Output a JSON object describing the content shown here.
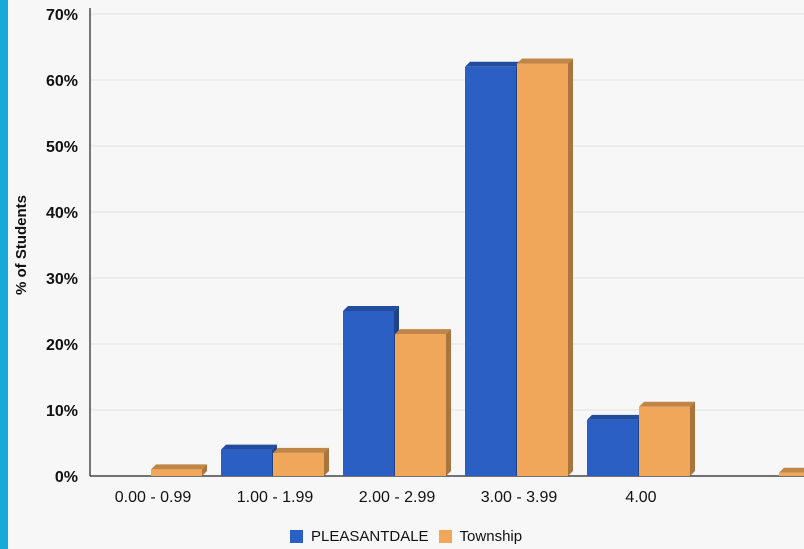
{
  "chart_data": {
    "type": "bar",
    "title": "",
    "xlabel": "",
    "ylabel": "% of Students",
    "ylim": [
      0,
      70
    ],
    "yticks": [
      "0%",
      "10%",
      "20%",
      "30%",
      "40%",
      "50%",
      "60%",
      "70%"
    ],
    "categories": [
      "0.00 - 0.99",
      "1.00 - 1.99",
      "2.00 - 2.99",
      "3.00 - 3.99",
      "4.00",
      ""
    ],
    "series": [
      {
        "name": "PLEASANTDALE",
        "color": "#2b5fc4",
        "values": [
          0,
          4,
          25,
          62,
          8.5,
          0
        ]
      },
      {
        "name": "Township",
        "color": "#f0a75a",
        "values": [
          1,
          3.5,
          21.5,
          62.5,
          10.5,
          0.5
        ]
      }
    ],
    "grid": true,
    "legend_position": "bottom"
  }
}
